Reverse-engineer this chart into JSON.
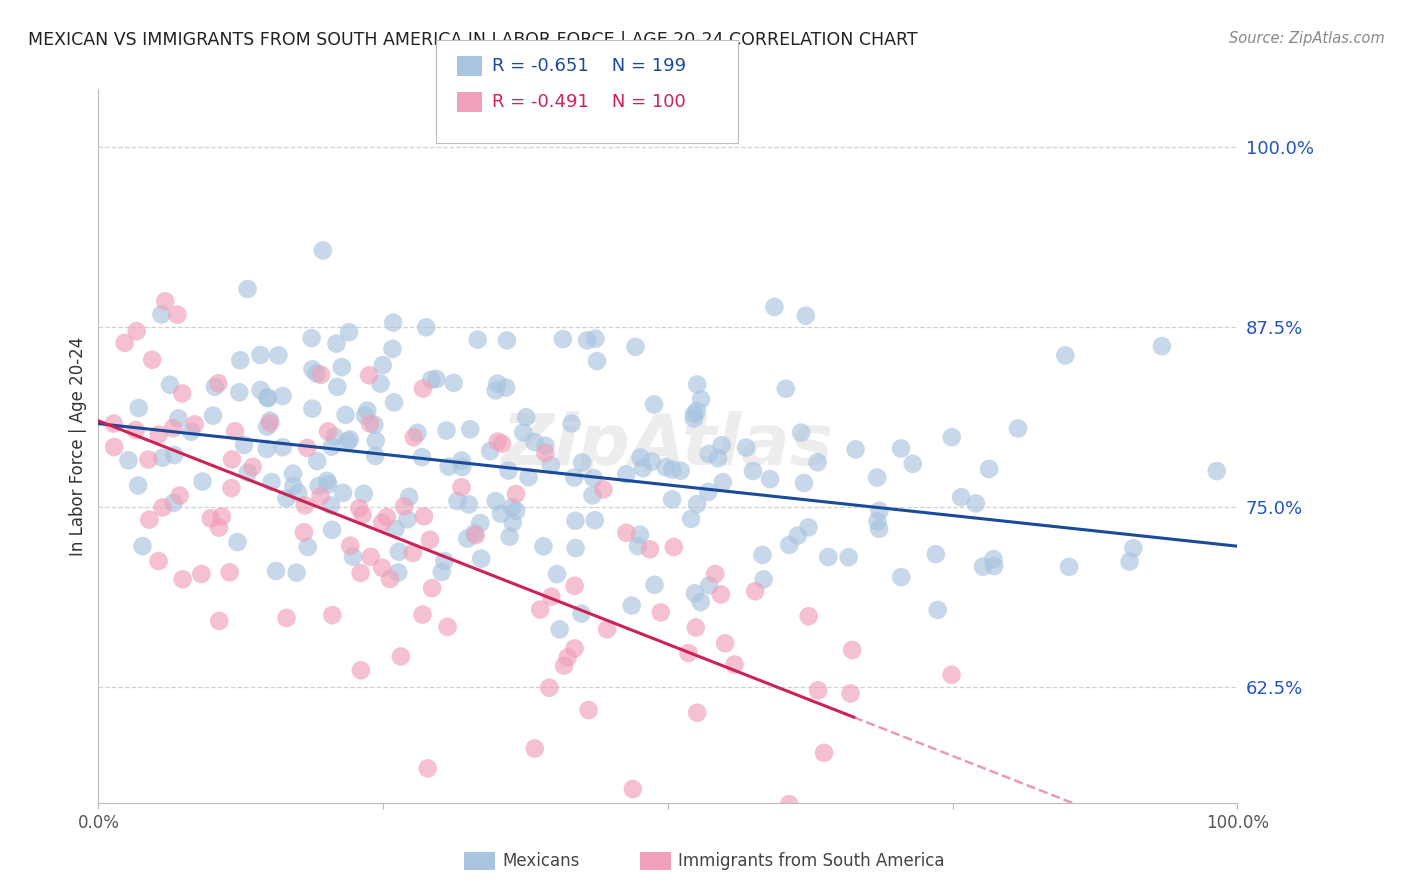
{
  "title": "MEXICAN VS IMMIGRANTS FROM SOUTH AMERICA IN LABOR FORCE | AGE 20-24 CORRELATION CHART",
  "source": "Source: ZipAtlas.com",
  "ylabel": "In Labor Force | Age 20-24",
  "blue_label": "Mexicans",
  "pink_label": "Immigrants from South America",
  "blue_R": -0.651,
  "blue_N": 199,
  "pink_R": -0.491,
  "pink_N": 100,
  "blue_color": "#A8C4E0",
  "pink_color": "#F0A0B8",
  "blue_line_color": "#1A4A9A",
  "pink_line_color": "#CC2255",
  "xlim": [
    0.0,
    1.0
  ],
  "ylim": [
    0.545,
    1.04
  ],
  "yticks": [
    0.625,
    0.75,
    0.875,
    1.0
  ],
  "ytick_labels": [
    "62.5%",
    "75.0%",
    "87.5%",
    "100.0%"
  ],
  "xticks": [
    0.0,
    0.25,
    0.5,
    0.75,
    1.0
  ],
  "xtick_labels": [
    "0.0%",
    "",
    "",
    "",
    "100.0%"
  ],
  "background_color": "#FFFFFF",
  "grid_color": "#CCCCCC",
  "watermark": "ZipAtlas",
  "blue_intercept": 0.808,
  "blue_slope": -0.085,
  "pink_intercept": 0.81,
  "pink_slope": -0.31,
  "seed_blue": 42,
  "seed_pink": 123
}
